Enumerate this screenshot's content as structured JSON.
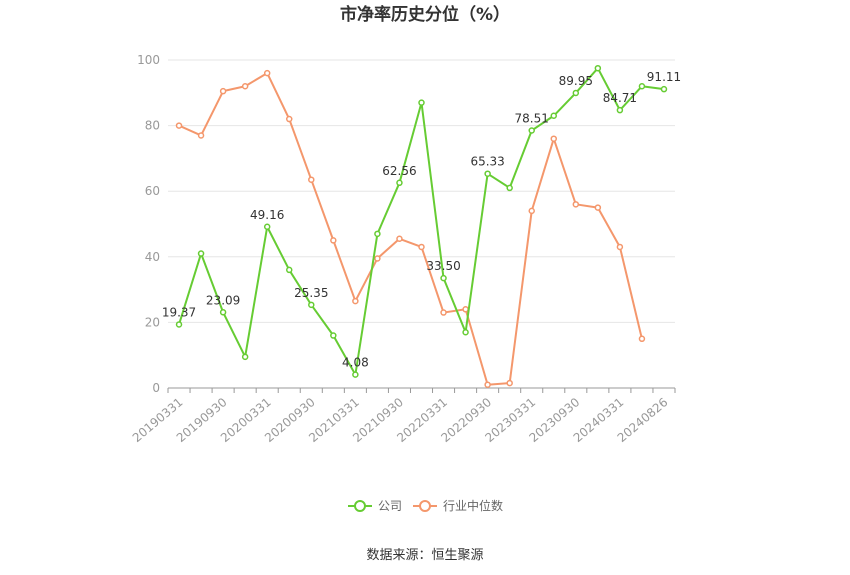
{
  "chart_data": {
    "type": "line",
    "title": "市净率历史分位（%）",
    "xlabel": "",
    "ylabel": "",
    "ylim": [
      0,
      100
    ],
    "yticks": [
      0,
      20,
      40,
      60,
      80,
      100
    ],
    "grid": true,
    "legend_position": "bottom",
    "x": [
      "20190331",
      "20190630",
      "20190930",
      "20191231",
      "20200331",
      "20200630",
      "20200930",
      "20201231",
      "20210331",
      "20210630",
      "20210930",
      "20211231",
      "20220331",
      "20220630",
      "20220930",
      "20221231",
      "20230331",
      "20230630",
      "20230930",
      "20231231",
      "20240331",
      "20240630",
      "20240826"
    ],
    "x_tick_labels": [
      "20190331",
      "20190930",
      "20200331",
      "20200930",
      "20210331",
      "20210930",
      "20220331",
      "20220930",
      "20230331",
      "20230930",
      "20240331",
      "20240826"
    ],
    "series": [
      {
        "name": "公司",
        "color": "#66cc33",
        "values": [
          19.37,
          41,
          23.09,
          9.5,
          49.16,
          36,
          25.35,
          16,
          4.08,
          47,
          62.56,
          87,
          33.5,
          17,
          65.33,
          61,
          78.51,
          83,
          89.95,
          97.5,
          84.71,
          92,
          91.11
        ],
        "data_labels": [
          {
            "index": 0,
            "text": "19.37"
          },
          {
            "index": 2,
            "text": "23.09"
          },
          {
            "index": 4,
            "text": "49.16"
          },
          {
            "index": 6,
            "text": "25.35"
          },
          {
            "index": 8,
            "text": "4.08"
          },
          {
            "index": 10,
            "text": "62.56"
          },
          {
            "index": 12,
            "text": "33.50"
          },
          {
            "index": 14,
            "text": "65.33"
          },
          {
            "index": 16,
            "text": "78.51"
          },
          {
            "index": 18,
            "text": "89.95"
          },
          {
            "index": 20,
            "text": "84.71"
          },
          {
            "index": 22,
            "text": "91.11"
          }
        ]
      },
      {
        "name": "行业中位数",
        "color": "#f4976c",
        "values": [
          80,
          77,
          90.5,
          92,
          96,
          82,
          63.5,
          45,
          26.5,
          39.5,
          45.5,
          43,
          23,
          24,
          1,
          1.5,
          54,
          76,
          56,
          55,
          43,
          15,
          null
        ]
      }
    ]
  },
  "source": "数据来源：恒生聚源"
}
